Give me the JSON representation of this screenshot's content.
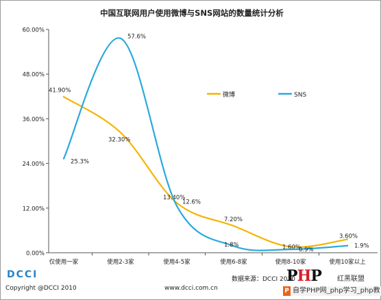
{
  "chart_data": {
    "type": "line",
    "title": "中国互联网用户使用微博与SNS网站的数量统计分析",
    "categories": [
      "仅使用一家",
      "使用2-3家",
      "使用4-5家",
      "使用6-8家",
      "使用8-10家",
      "使用10家以上"
    ],
    "ylim": [
      0,
      60
    ],
    "yticks": [
      "0.00%",
      "12.00%",
      "24.00%",
      "36.00%",
      "48.00%",
      "60.00%"
    ],
    "ytick_values": [
      0,
      12,
      24,
      36,
      48,
      60
    ],
    "grid": false,
    "legend_position": "right-middle",
    "series": [
      {
        "name": "微博",
        "color": "#f5b400",
        "values": [
          41.9,
          32.3,
          13.4,
          7.2,
          1.6,
          3.6
        ],
        "labels": [
          "41.90%",
          "32.30%",
          "13.40%",
          "7.20%",
          "1.60%",
          "3.60%"
        ]
      },
      {
        "name": "SNS",
        "color": "#28a9dc",
        "values": [
          25.3,
          57.6,
          12.6,
          1.8,
          0.9,
          1.9
        ],
        "labels": [
          "25.3%",
          "57.6%",
          "12.6%",
          "1.8%",
          "0.9%",
          "1.9%"
        ]
      }
    ]
  },
  "footer": {
    "logo": "DCCI",
    "copyright": "Copyright @DCCI 2010",
    "website": "www.dcci.com.cn",
    "source": "数据来源：DCCI 2010"
  },
  "watermark": {
    "logo": "PHP",
    "mark": "红黑联盟",
    "subtitle": "自学PHP网_php学习_php教"
  }
}
